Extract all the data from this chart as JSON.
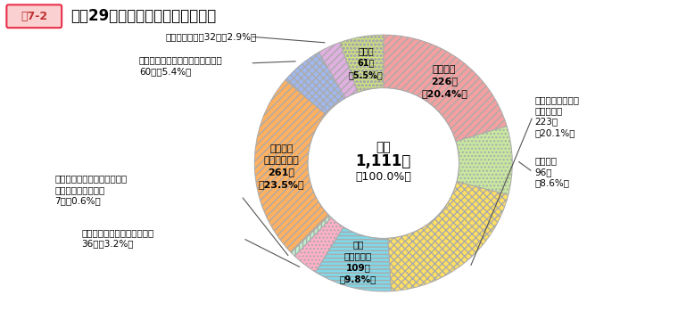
{
  "title": "平成29年度苦情相談の内容別件数",
  "title_tag": "図7-2",
  "total_label": "総計",
  "total_value": "1,111件",
  "total_pct": "（100.0%）",
  "segments": [
    {
      "label": "任用関係",
      "count": 226,
      "pct": "（20.4%）",
      "color": "#F4A0A0",
      "hatch": "////"
    },
    {
      "label": "給与関係",
      "count": 96,
      "pct": "（8.6%）",
      "color": "#C8E8A0",
      "hatch": "...."
    },
    {
      "label": "勤務時間、休暇、\n服務等関係",
      "count": 223,
      "pct": "（20.1%）",
      "color": "#FFE060",
      "hatch": "xxxx"
    },
    {
      "label": "健康\n安全等関係",
      "count": 109,
      "pct": "（9.8%）",
      "color": "#80D8E8",
      "hatch": "----"
    },
    {
      "label": "セクシュアル・ハラスメント",
      "count": 36,
      "pct": "（3.2%）",
      "color": "#FFB0C8",
      "hatch": "...."
    },
    {
      "label": "妊娠、出産、育児又は介護に\n関するハラスメント",
      "count": 7,
      "pct": "（0.6%）",
      "color": "#C0F0D0",
      "hatch": "||||"
    },
    {
      "label": "パワー・\nハラスメント",
      "count": 261,
      "pct": "（23.5%）",
      "color": "#FFB060",
      "hatch": "////"
    },
    {
      "label": "パワハラ以外のいじめ・嫌がらせ",
      "count": 60,
      "pct": "（5.4%）",
      "color": "#A0B8F0",
      "hatch": "xxxx"
    },
    {
      "label": "人事評価関係",
      "count": 32,
      "pct": "（2.9%）",
      "color": "#E0B0E0",
      "hatch": "////"
    },
    {
      "label": "その他",
      "count": 61,
      "pct": "（5.5%）",
      "color": "#D0E878",
      "hatch": "oooo"
    }
  ],
  "background_color": "#ffffff",
  "tag_bg": "#E8304A",
  "tag_text_color": "#ffffff",
  "tag_border": "#F4A0A0"
}
